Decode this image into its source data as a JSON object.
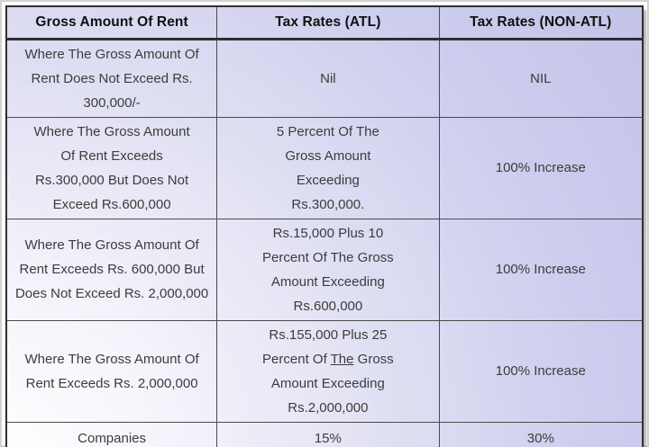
{
  "colors": {
    "bg_light": "#ffffff",
    "bg_lavender": "#c2c2e8",
    "border_dark": "#2f2f2f",
    "border_mid": "#4a4a4a",
    "header_text": "#101010",
    "body_text": "#3c3c3c"
  },
  "table": {
    "headers": [
      "Gross Amount Of Rent",
      "Tax Rates (ATL)",
      "Tax Rates (NON-ATL)"
    ],
    "rows": [
      {
        "gross": [
          "Where The Gross Amount Of",
          "Rent Does Not Exceed Rs.",
          "300,000/-"
        ],
        "atl": [
          "Nil"
        ],
        "non_atl": [
          "NIL"
        ]
      },
      {
        "gross": [
          "Where The Gross Amount",
          "Of Rent Exceeds",
          "Rs.300,000 But Does Not",
          "Exceed Rs.600,000"
        ],
        "atl": [
          "5 Percent Of The",
          "Gross Amount",
          "Exceeding",
          "Rs.300,000."
        ],
        "non_atl": [
          "100% Increase"
        ]
      },
      {
        "gross": [
          "Where The Gross Amount Of",
          "Rent Exceeds Rs. 600,000 But",
          "Does Not Exceed Rs. 2,000,000"
        ],
        "atl": [
          "Rs.15,000 Plus 10",
          "Percent Of The Gross",
          "Amount Exceeding",
          "Rs.600,000"
        ],
        "non_atl": [
          "100% Increase"
        ]
      },
      {
        "gross": [
          "Where The Gross Amount Of",
          "Rent Exceeds Rs. 2,000,000"
        ],
        "atl": [
          "Rs.155,000 Plus 25",
          "Percent Of [u]The[/u] Gross",
          "Amount Exceeding",
          "Rs.2,000,000"
        ],
        "non_atl": [
          "100% Increase"
        ]
      },
      {
        "gross": [
          "Companies"
        ],
        "atl": [
          "15%"
        ],
        "non_atl": [
          "30%"
        ]
      }
    ]
  }
}
